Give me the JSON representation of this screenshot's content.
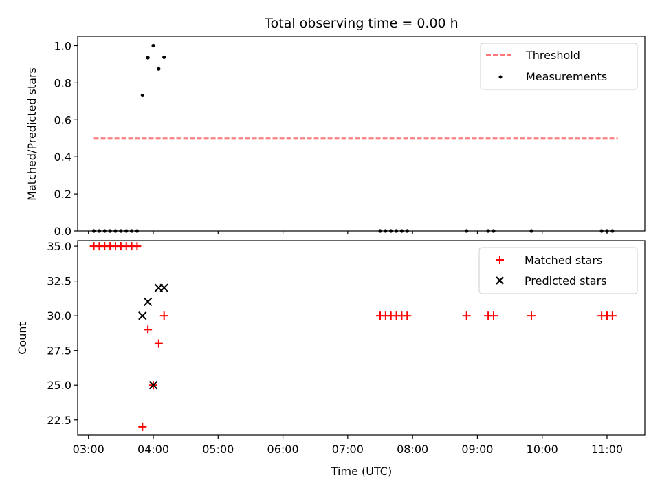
{
  "chart_data": {
    "title": "Total observing time = 0.00 h",
    "xlabel": "Time (UTC)",
    "x_unit": "hours UTC",
    "xlim": [
      "02:50",
      "11:35"
    ],
    "xticks": [
      "03:00",
      "04:00",
      "05:00",
      "06:00",
      "07:00",
      "08:00",
      "09:00",
      "10:00",
      "11:00"
    ],
    "panels": [
      {
        "type": "scatter",
        "ylabel": "Matched/Predicted stars",
        "ylim": [
          0,
          1.05
        ],
        "yticks": [
          "0.0",
          "0.2",
          "0.4",
          "0.6",
          "0.8",
          "1.0"
        ],
        "legend_position": "upper right",
        "threshold": {
          "name": "Threshold",
          "value": 0.5,
          "x_range": [
            "03:05",
            "11:10"
          ],
          "color": "#ff7777"
        },
        "series": [
          {
            "name": "Measurements",
            "marker": "dot",
            "color": "#000000",
            "points": [
              [
                "03:05",
                0
              ],
              [
                "03:10",
                0
              ],
              [
                "03:15",
                0
              ],
              [
                "03:20",
                0
              ],
              [
                "03:25",
                0
              ],
              [
                "03:30",
                0
              ],
              [
                "03:35",
                0
              ],
              [
                "03:40",
                0
              ],
              [
                "03:45",
                0
              ],
              [
                "03:50",
                0.733
              ],
              [
                "03:55",
                0.935
              ],
              [
                "04:00",
                1.0
              ],
              [
                "04:05",
                0.875
              ],
              [
                "04:10",
                0.9375
              ],
              [
                "07:30",
                0
              ],
              [
                "07:35",
                0
              ],
              [
                "07:40",
                0
              ],
              [
                "07:45",
                0
              ],
              [
                "07:50",
                0
              ],
              [
                "07:55",
                0
              ],
              [
                "08:50",
                0
              ],
              [
                "09:10",
                0
              ],
              [
                "09:15",
                0
              ],
              [
                "09:50",
                0
              ],
              [
                "10:55",
                0
              ],
              [
                "11:00",
                0
              ],
              [
                "11:05",
                0
              ]
            ]
          }
        ]
      },
      {
        "type": "scatter",
        "ylabel": "Count",
        "ylim": [
          21.4,
          35.4
        ],
        "yticks": [
          "22.5",
          "25.0",
          "27.5",
          "30.0",
          "32.5",
          "35.0"
        ],
        "legend_position": "upper right",
        "series": [
          {
            "name": "Matched stars",
            "marker": "plus",
            "color": "#ff0000",
            "points": [
              [
                "03:05",
                35
              ],
              [
                "03:10",
                35
              ],
              [
                "03:15",
                35
              ],
              [
                "03:20",
                35
              ],
              [
                "03:25",
                35
              ],
              [
                "03:30",
                35
              ],
              [
                "03:35",
                35
              ],
              [
                "03:40",
                35
              ],
              [
                "03:45",
                35
              ],
              [
                "03:50",
                22
              ],
              [
                "03:55",
                29
              ],
              [
                "04:00",
                25
              ],
              [
                "04:05",
                28
              ],
              [
                "04:10",
                30
              ],
              [
                "07:30",
                30
              ],
              [
                "07:35",
                30
              ],
              [
                "07:40",
                30
              ],
              [
                "07:45",
                30
              ],
              [
                "07:50",
                30
              ],
              [
                "07:55",
                30
              ],
              [
                "08:50",
                30
              ],
              [
                "09:10",
                30
              ],
              [
                "09:15",
                30
              ],
              [
                "09:50",
                30
              ],
              [
                "10:55",
                30
              ],
              [
                "11:00",
                30
              ],
              [
                "11:05",
                30
              ]
            ]
          },
          {
            "name": "Predicted stars",
            "marker": "x",
            "color": "#000000",
            "points": [
              [
                "03:50",
                30
              ],
              [
                "03:55",
                31
              ],
              [
                "04:00",
                25
              ],
              [
                "04:05",
                32
              ],
              [
                "04:10",
                32
              ]
            ]
          }
        ]
      }
    ]
  }
}
